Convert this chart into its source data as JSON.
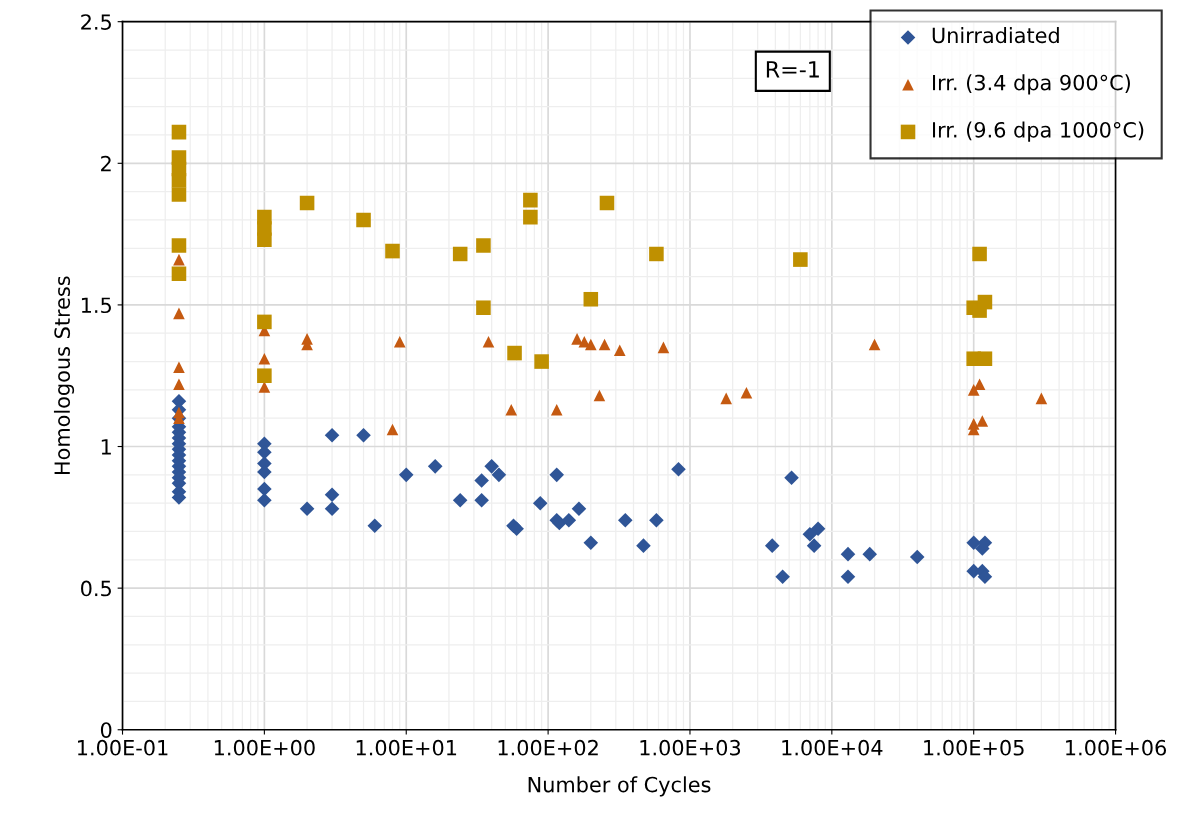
{
  "chart_data": {
    "type": "scatter",
    "xlabel": "Number of Cycles",
    "ylabel": "Homologous Stress",
    "annotations": [
      "R=-1"
    ],
    "log": "x",
    "xlim": [
      0.1,
      1000000
    ],
    "xticks": [
      {
        "value": 0.1,
        "label": "1.00E-01"
      },
      {
        "value": 1,
        "label": "1.00E+00"
      },
      {
        "value": 10,
        "label": "1.00E+01"
      },
      {
        "value": 100,
        "label": "1.00E+02"
      },
      {
        "value": 1000,
        "label": "1.00E+03"
      },
      {
        "value": 10000,
        "label": "1.00E+04"
      },
      {
        "value": 100000,
        "label": "1.00E+05"
      },
      {
        "value": 1000000,
        "label": "1.00E+06"
      }
    ],
    "ylim": [
      0,
      2.5
    ],
    "yticks": [
      0,
      0.5,
      1,
      1.5,
      2,
      2.5
    ],
    "grid": true,
    "legend": "top right",
    "series": [
      {
        "name": "Unirradiated",
        "color": "#2f5597",
        "marker": "diamond",
        "x": [
          0.25,
          0.25,
          0.25,
          0.25,
          0.25,
          0.25,
          0.25,
          0.25,
          0.25,
          0.25,
          0.25,
          0.25,
          0.25,
          0.25,
          0.25,
          0.25,
          1,
          1,
          1,
          1,
          1,
          1,
          2,
          3,
          3,
          3,
          5,
          6,
          10,
          16,
          24,
          34,
          34,
          40,
          45,
          57,
          60,
          88,
          115,
          115,
          120,
          140,
          165,
          200,
          350,
          470,
          580,
          830,
          3800,
          4500,
          5200,
          7000,
          7500,
          8000,
          13000,
          13000,
          18500,
          40000,
          100000,
          100000,
          115000,
          115000,
          120000,
          120000
        ],
        "values": [
          1.16,
          1.13,
          1.1,
          1.07,
          1.05,
          1.03,
          1.01,
          0.99,
          0.97,
          0.95,
          0.93,
          0.91,
          0.89,
          0.87,
          0.84,
          0.82,
          1.01,
          0.98,
          0.94,
          0.91,
          0.85,
          0.81,
          0.78,
          1.04,
          0.83,
          0.78,
          1.04,
          0.72,
          0.9,
          0.93,
          0.81,
          0.88,
          0.81,
          0.93,
          0.9,
          0.72,
          0.71,
          0.8,
          0.9,
          0.74,
          0.73,
          0.74,
          0.78,
          0.66,
          0.74,
          0.65,
          0.74,
          0.92,
          0.65,
          0.54,
          0.89,
          0.69,
          0.65,
          0.71,
          0.62,
          0.54,
          0.62,
          0.61,
          0.66,
          0.56,
          0.64,
          0.56,
          0.66,
          0.54
        ]
      },
      {
        "name": "Irr. (3.4 dpa 900°C)",
        "color": "#c55a11",
        "marker": "triangle",
        "x": [
          0.25,
          0.25,
          0.25,
          0.25,
          0.25,
          0.25,
          1,
          1,
          1,
          2,
          2,
          8,
          9,
          38,
          55,
          115,
          160,
          180,
          200,
          230,
          250,
          320,
          650,
          1800,
          2500,
          20000,
          100000,
          100000,
          100000,
          110000,
          115000,
          300000
        ],
        "values": [
          1.66,
          1.47,
          1.28,
          1.22,
          1.12,
          1.1,
          1.41,
          1.31,
          1.21,
          1.38,
          1.36,
          1.06,
          1.37,
          1.37,
          1.13,
          1.13,
          1.38,
          1.37,
          1.36,
          1.18,
          1.36,
          1.34,
          1.35,
          1.17,
          1.19,
          1.36,
          1.2,
          1.08,
          1.06,
          1.22,
          1.09,
          1.17
        ]
      },
      {
        "name": "Irr. (9.6 dpa 1000°C)",
        "color": "#bf9000",
        "marker": "square",
        "x": [
          0.25,
          0.25,
          0.25,
          0.25,
          0.25,
          0.25,
          0.25,
          1,
          1,
          1,
          1,
          1,
          2,
          5,
          8,
          24,
          35,
          35,
          58,
          75,
          75,
          90,
          200,
          260,
          580,
          6000,
          100000,
          100000,
          110000,
          110000,
          120000,
          120000
        ],
        "values": [
          2.11,
          2.02,
          1.98,
          1.94,
          1.89,
          1.71,
          1.61,
          1.81,
          1.77,
          1.73,
          1.44,
          1.25,
          1.86,
          1.8,
          1.69,
          1.68,
          1.71,
          1.49,
          1.33,
          1.87,
          1.81,
          1.3,
          1.52,
          1.86,
          1.68,
          1.66,
          1.49,
          1.31,
          1.68,
          1.48,
          1.51,
          1.31
        ]
      }
    ]
  }
}
